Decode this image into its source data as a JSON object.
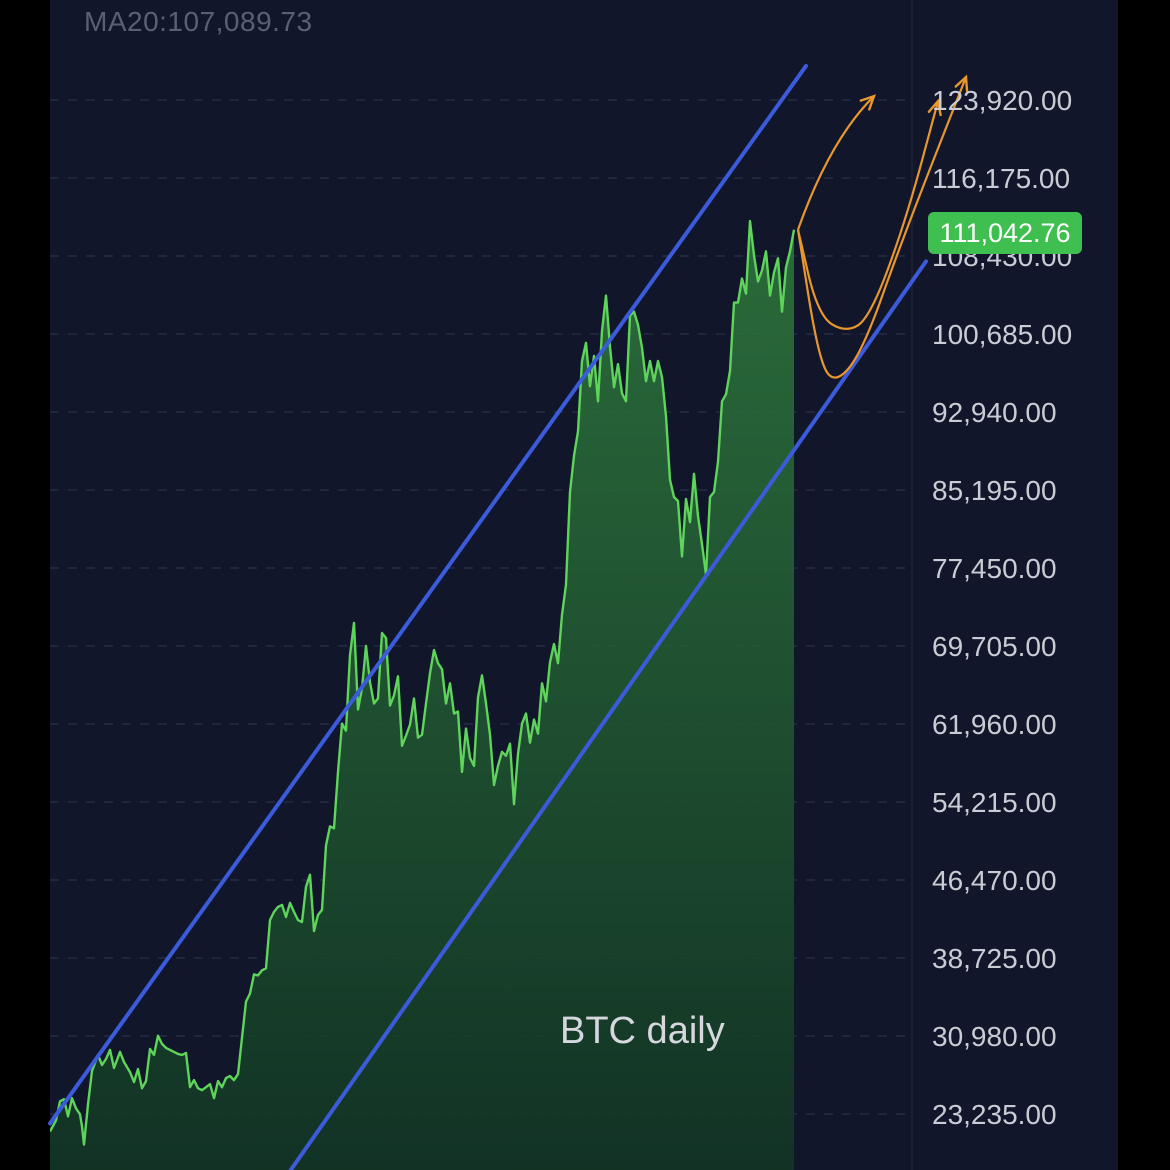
{
  "indicator": {
    "ma_label": "MA20:107,089.73"
  },
  "last_price": "111,042.76",
  "colors": {
    "background": "#11162b",
    "frame": "#000000",
    "price_line": "#5fd45a",
    "area_top": "#2f7a3d",
    "area_bottom": "#123524",
    "channel": "#3b5bdb",
    "projection": "#e8962e",
    "badge": "#3fbf4f",
    "grid": "#2a3048",
    "axis_text": "#c9ccd4"
  },
  "chart_data": {
    "type": "line",
    "title": "BTC daily",
    "xlabel": "",
    "ylabel": "",
    "ylim": [
      17000,
      128000
    ],
    "y_ticks": [
      {
        "value": 123920,
        "label": "123,920.00"
      },
      {
        "value": 116175,
        "label": "116,175.00"
      },
      {
        "value": 108430,
        "label": "108,430.00"
      },
      {
        "value": 100685,
        "label": "100,685.00"
      },
      {
        "value": 92940,
        "label": "92,940.00"
      },
      {
        "value": 85195,
        "label": "85,195.00"
      },
      {
        "value": 77450,
        "label": "77,450.00"
      },
      {
        "value": 69705,
        "label": "69,705.00"
      },
      {
        "value": 61960,
        "label": "61,960.00"
      },
      {
        "value": 54215,
        "label": "54,215.00"
      },
      {
        "value": 46470,
        "label": "46,470.00"
      },
      {
        "value": 38725,
        "label": "38,725.00"
      },
      {
        "value": 30980,
        "label": "30,980.00"
      },
      {
        "value": 23235,
        "label": "23,235.00"
      }
    ],
    "series": [
      {
        "values": [
          [
            0,
            21500
          ],
          [
            3,
            22600
          ],
          [
            5,
            24500
          ],
          [
            7,
            24700
          ],
          [
            9,
            23000
          ],
          [
            11,
            24800
          ],
          [
            13,
            23800
          ],
          [
            15,
            23200
          ],
          [
            16,
            22000
          ],
          [
            17,
            20200
          ],
          [
            19,
            24200
          ],
          [
            21,
            27500
          ],
          [
            24,
            29100
          ],
          [
            26,
            28100
          ],
          [
            28,
            28700
          ],
          [
            30,
            29600
          ],
          [
            32,
            27800
          ],
          [
            35,
            29400
          ],
          [
            37,
            28400
          ],
          [
            40,
            27400
          ],
          [
            42,
            26400
          ],
          [
            44,
            27700
          ],
          [
            46,
            25800
          ],
          [
            48,
            26500
          ],
          [
            50,
            29700
          ],
          [
            52,
            29100
          ],
          [
            54,
            31000
          ],
          [
            56,
            30200
          ],
          [
            58,
            29800
          ],
          [
            60,
            29600
          ],
          [
            62,
            29400
          ],
          [
            64,
            29200
          ],
          [
            66,
            29100
          ],
          [
            68,
            29300
          ],
          [
            70,
            25900
          ],
          [
            72,
            26600
          ],
          [
            74,
            25800
          ],
          [
            76,
            25600
          ],
          [
            78,
            25900
          ],
          [
            80,
            26200
          ],
          [
            82,
            24800
          ],
          [
            84,
            26500
          ],
          [
            86,
            25900
          ],
          [
            88,
            26800
          ],
          [
            90,
            27000
          ],
          [
            92,
            26600
          ],
          [
            94,
            27200
          ],
          [
            96,
            30800
          ],
          [
            98,
            34400
          ],
          [
            100,
            35200
          ],
          [
            102,
            37100
          ],
          [
            104,
            37000
          ],
          [
            106,
            37500
          ],
          [
            108,
            37700
          ],
          [
            110,
            42500
          ],
          [
            112,
            43300
          ],
          [
            114,
            43800
          ],
          [
            116,
            44000
          ],
          [
            118,
            42800
          ],
          [
            120,
            44200
          ],
          [
            122,
            43300
          ],
          [
            124,
            42500
          ],
          [
            126,
            42300
          ],
          [
            128,
            45800
          ],
          [
            130,
            47000
          ],
          [
            132,
            41400
          ],
          [
            134,
            43000
          ],
          [
            136,
            43500
          ],
          [
            138,
            49900
          ],
          [
            140,
            51800
          ],
          [
            142,
            51600
          ],
          [
            144,
            57200
          ],
          [
            146,
            62000
          ],
          [
            148,
            61300
          ],
          [
            150,
            68800
          ],
          [
            152,
            72000
          ],
          [
            154,
            63400
          ],
          [
            156,
            65500
          ],
          [
            158,
            69700
          ],
          [
            160,
            66100
          ],
          [
            162,
            64000
          ],
          [
            164,
            64500
          ],
          [
            166,
            71000
          ],
          [
            168,
            70500
          ],
          [
            170,
            63800
          ],
          [
            172,
            64800
          ],
          [
            174,
            66700
          ],
          [
            176,
            59800
          ],
          [
            178,
            60800
          ],
          [
            180,
            61900
          ],
          [
            182,
            64500
          ],
          [
            184,
            60600
          ],
          [
            186,
            60900
          ],
          [
            188,
            64000
          ],
          [
            190,
            67000
          ],
          [
            192,
            69300
          ],
          [
            194,
            68000
          ],
          [
            196,
            67400
          ],
          [
            198,
            64000
          ],
          [
            200,
            66000
          ],
          [
            202,
            63000
          ],
          [
            204,
            63200
          ],
          [
            206,
            57200
          ],
          [
            208,
            61500
          ],
          [
            210,
            58600
          ],
          [
            212,
            57800
          ],
          [
            214,
            64600
          ],
          [
            216,
            66800
          ],
          [
            218,
            64000
          ],
          [
            220,
            60900
          ],
          [
            222,
            55900
          ],
          [
            224,
            57800
          ],
          [
            226,
            59200
          ],
          [
            228,
            58800
          ],
          [
            230,
            60000
          ],
          [
            232,
            54000
          ],
          [
            234,
            59000
          ],
          [
            236,
            62000
          ],
          [
            238,
            63000
          ],
          [
            240,
            60100
          ],
          [
            242,
            62400
          ],
          [
            244,
            61000
          ],
          [
            246,
            66000
          ],
          [
            248,
            64200
          ],
          [
            250,
            68100
          ],
          [
            252,
            69900
          ],
          [
            254,
            68000
          ],
          [
            256,
            72800
          ],
          [
            258,
            75800
          ],
          [
            260,
            85000
          ],
          [
            262,
            88600
          ],
          [
            264,
            91000
          ],
          [
            266,
            98000
          ],
          [
            268,
            99800
          ],
          [
            270,
            95500
          ],
          [
            272,
            98500
          ],
          [
            274,
            94000
          ],
          [
            276,
            101000
          ],
          [
            278,
            104500
          ],
          [
            280,
            99400
          ],
          [
            282,
            95400
          ],
          [
            284,
            97700
          ],
          [
            286,
            94800
          ],
          [
            288,
            94000
          ],
          [
            290,
            102500
          ],
          [
            292,
            102900
          ],
          [
            294,
            101600
          ],
          [
            296,
            99300
          ],
          [
            298,
            96000
          ],
          [
            300,
            98000
          ],
          [
            302,
            96000
          ],
          [
            304,
            98000
          ],
          [
            306,
            96400
          ],
          [
            308,
            92500
          ],
          [
            310,
            86200
          ],
          [
            312,
            84500
          ],
          [
            314,
            84100
          ],
          [
            316,
            78600
          ],
          [
            318,
            84300
          ],
          [
            320,
            82000
          ],
          [
            322,
            86800
          ],
          [
            324,
            82600
          ],
          [
            326,
            79800
          ],
          [
            328,
            76800
          ],
          [
            330,
            84500
          ],
          [
            332,
            85000
          ],
          [
            334,
            88000
          ],
          [
            336,
            94000
          ],
          [
            338,
            94700
          ],
          [
            340,
            97000
          ],
          [
            342,
            103800
          ],
          [
            344,
            103800
          ],
          [
            346,
            106200
          ],
          [
            348,
            104700
          ],
          [
            350,
            111900
          ],
          [
            352,
            108500
          ],
          [
            354,
            105900
          ],
          [
            356,
            107000
          ],
          [
            358,
            108900
          ],
          [
            360,
            104500
          ],
          [
            362,
            106800
          ],
          [
            364,
            108200
          ],
          [
            366,
            102900
          ],
          [
            368,
            107300
          ],
          [
            370,
            108900
          ],
          [
            372,
            111042
          ]
        ]
      }
    ],
    "channel": {
      "upper": [
        [
          0,
          22300
        ],
        [
          378,
          127300
        ]
      ],
      "lower": [
        [
          118,
          17000
        ],
        [
          438,
          107900
        ]
      ]
    },
    "projections": [
      [
        [
          374,
          111042
        ],
        [
          390,
          120000
        ],
        [
          412,
          124300
        ]
      ],
      [
        [
          374,
          111042
        ],
        [
          384,
          102500
        ],
        [
          398,
          100800
        ],
        [
          410,
          102300
        ],
        [
          428,
          112000
        ],
        [
          444,
          123800
        ]
      ],
      [
        [
          374,
          111042
        ],
        [
          384,
          98500
        ],
        [
          392,
          95600
        ],
        [
          406,
          98800
        ],
        [
          426,
          110000
        ],
        [
          458,
          126200
        ]
      ]
    ],
    "grid": true
  }
}
